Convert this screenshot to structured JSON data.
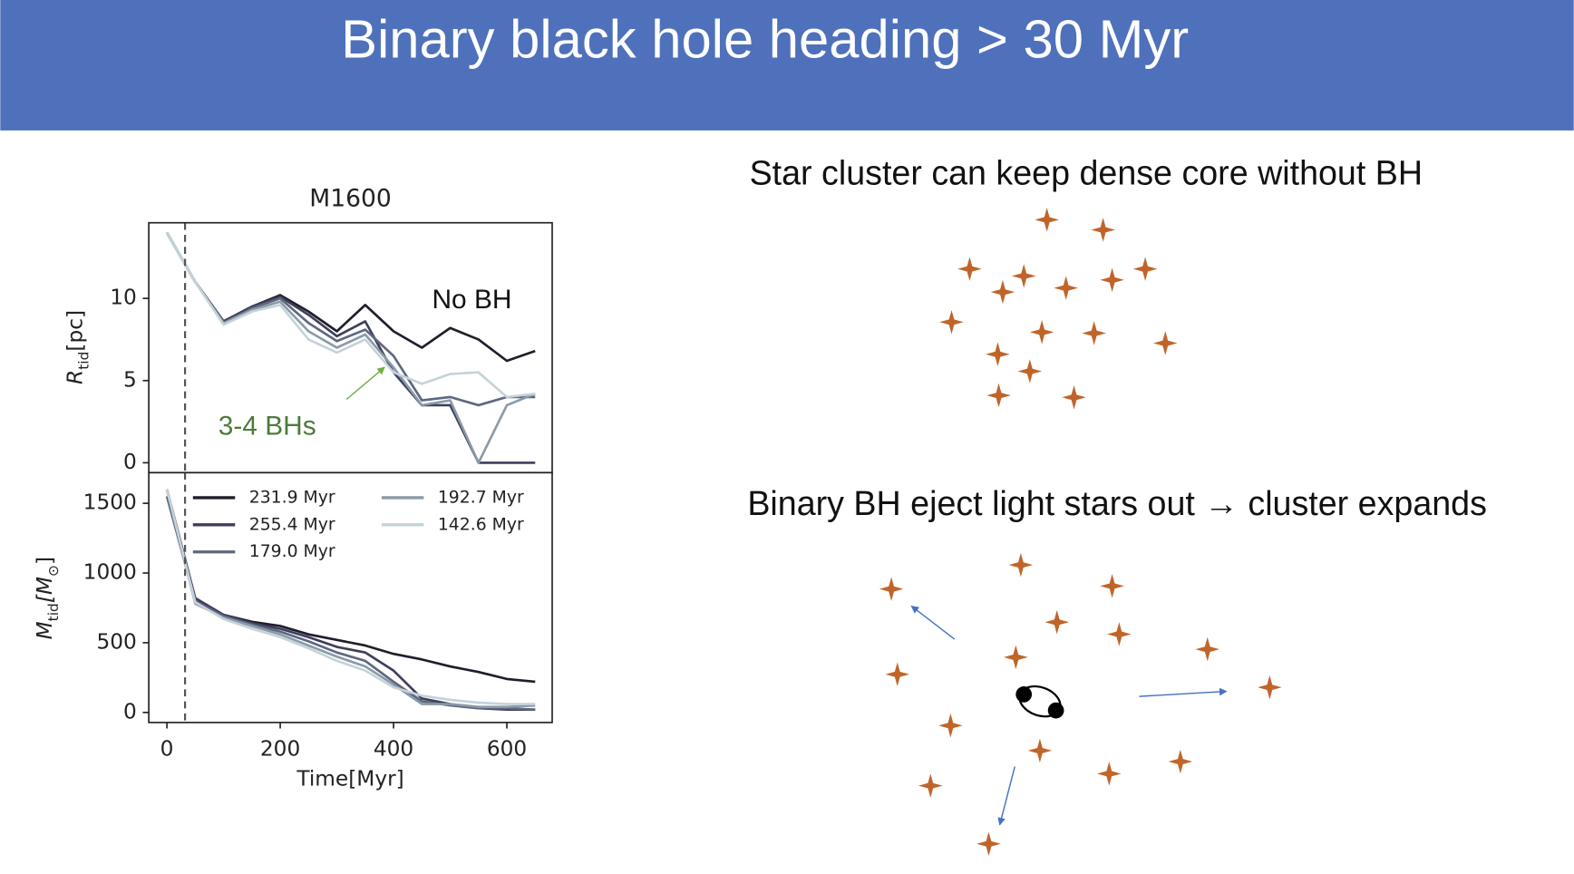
{
  "header": {
    "title": "Binary black hole heading > 30 Myr"
  },
  "chart_data": [
    {
      "type": "line",
      "title": "M1600",
      "ylabel": [
        "R",
        "tid",
        "[pc]"
      ],
      "x": [
        0,
        50,
        100,
        150,
        200,
        250,
        300,
        350,
        400,
        450,
        500,
        550,
        600,
        650
      ],
      "xlim": [
        -32,
        680
      ],
      "ylim": [
        -0.6,
        14.6
      ],
      "yticks": [
        0,
        5,
        10
      ],
      "vline": 32,
      "annotations": [
        "No BH",
        "3-4 BHs"
      ],
      "series": [
        {
          "name": "231.9 Myr",
          "color": "#1e1e2c",
          "values": [
            14,
            11,
            8.6,
            9.5,
            10.2,
            9.2,
            8,
            9.6,
            8,
            7,
            8.2,
            7.5,
            6.2,
            6.8
          ]
        },
        {
          "name": "255.4 Myr",
          "color": "#3e3e5c",
          "values": [
            14,
            11,
            8.6,
            9.5,
            10.1,
            9,
            7.7,
            8.6,
            5.5,
            3.5,
            3.5,
            0,
            0,
            0
          ]
        },
        {
          "name": "179.0 Myr",
          "color": "#5f6680",
          "values": [
            14,
            11,
            8.5,
            9.4,
            10,
            8.5,
            7.4,
            8.1,
            6.5,
            3.8,
            4,
            3.5,
            4,
            4
          ]
        },
        {
          "name": "192.7 Myr",
          "color": "#8a9aa8",
          "values": [
            14,
            11,
            8.5,
            9.3,
            9.8,
            8,
            7,
            7.8,
            5.8,
            3.5,
            3.8,
            0,
            3.5,
            4.2
          ]
        },
        {
          "name": "142.6 Myr",
          "color": "#c5d3d8",
          "values": [
            14,
            11,
            8.4,
            9.2,
            9.6,
            7.5,
            6.7,
            7.5,
            5.5,
            4.8,
            5.4,
            5.5,
            4,
            4.2
          ]
        }
      ]
    },
    {
      "type": "line",
      "xlabel": "Time[Myr]",
      "ylabel": [
        "M",
        "tid",
        "[M",
        "⊙",
        "]"
      ],
      "x": [
        0,
        50,
        100,
        150,
        200,
        250,
        300,
        350,
        400,
        450,
        500,
        550,
        600,
        650
      ],
      "xlim": [
        -32,
        680
      ],
      "ylim": [
        -72,
        1720
      ],
      "xticks": [
        0,
        200,
        400,
        600
      ],
      "yticks": [
        0,
        500,
        1000,
        1500
      ],
      "vline": 32,
      "legend": true,
      "series": [
        {
          "name": "231.9 Myr",
          "color": "#1e1e2c",
          "values": [
            1600,
            800,
            700,
            650,
            620,
            560,
            520,
            480,
            420,
            380,
            330,
            290,
            240,
            220
          ]
        },
        {
          "name": "255.4 Myr",
          "color": "#3e3e5c",
          "values": [
            1600,
            820,
            700,
            640,
            600,
            540,
            470,
            430,
            300,
            100,
            60,
            30,
            20,
            20
          ]
        },
        {
          "name": "179.0 Myr",
          "color": "#5f6680",
          "values": [
            1550,
            800,
            690,
            630,
            580,
            510,
            430,
            370,
            220,
            80,
            50,
            30,
            30,
            20
          ]
        },
        {
          "name": "192.7 Myr",
          "color": "#8a9aa8",
          "values": [
            1600,
            780,
            680,
            620,
            560,
            480,
            400,
            330,
            200,
            60,
            60,
            40,
            40,
            50
          ]
        },
        {
          "name": "142.6 Myr",
          "color": "#c5d3d8",
          "values": [
            1600,
            790,
            670,
            600,
            540,
            460,
            370,
            300,
            180,
            120,
            90,
            70,
            60,
            60
          ]
        }
      ]
    }
  ],
  "panels": {
    "top": "Star cluster can keep dense core without BH",
    "bottom": "Binary BH eject light stars out → cluster expands"
  }
}
